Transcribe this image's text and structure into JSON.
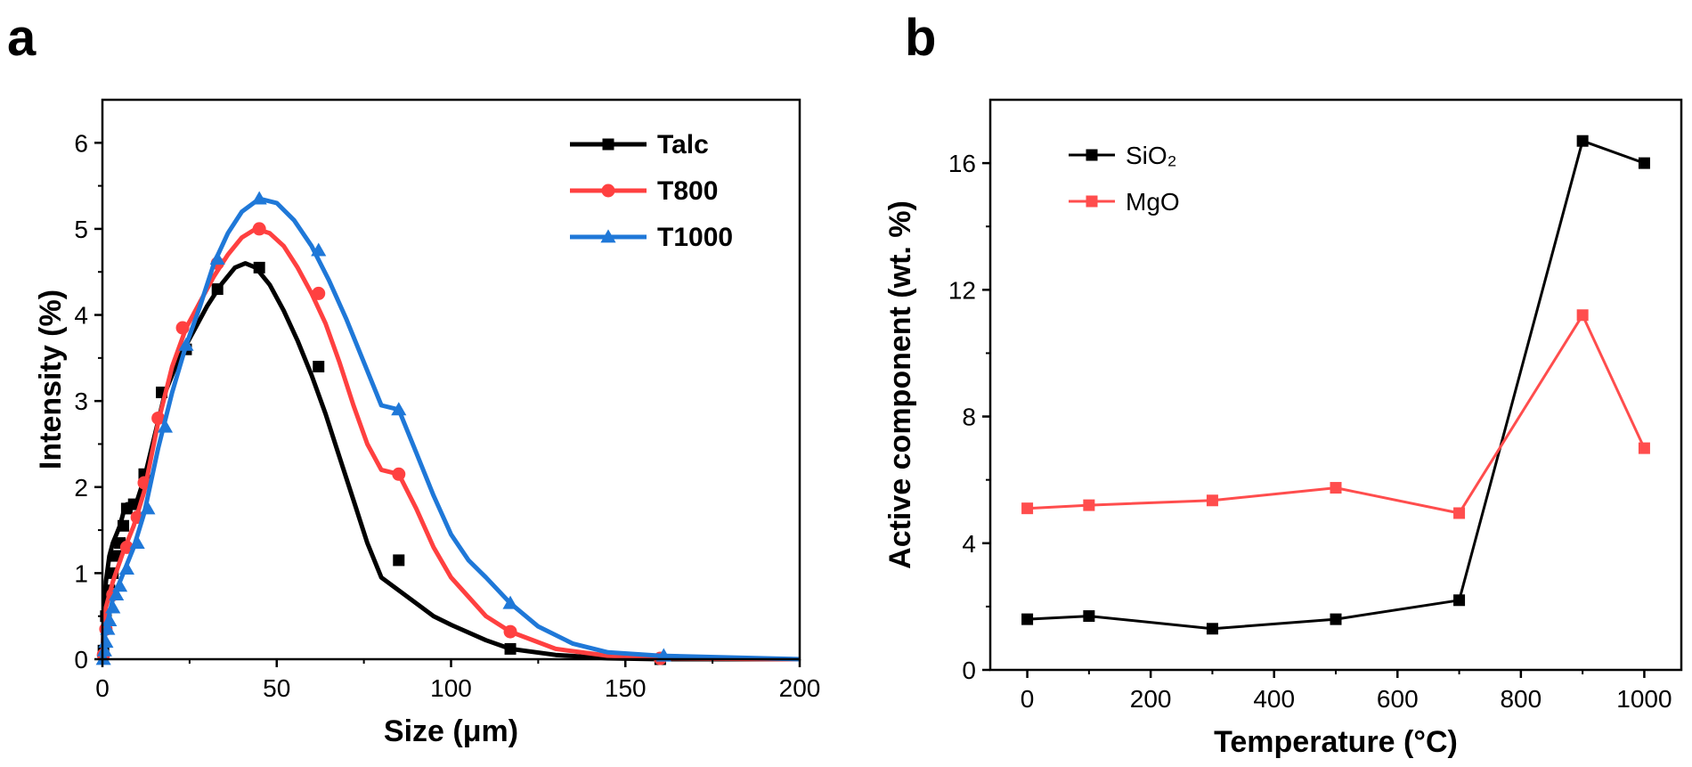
{
  "chart_data": [
    {
      "panel": "a",
      "type": "line",
      "xlabel": "Size (μm)",
      "ylabel": "Intensity (%)",
      "xlim": [
        0,
        200
      ],
      "ylim": [
        0,
        6.5
      ],
      "xticks": [
        0,
        50,
        100,
        150,
        200
      ],
      "yticks": [
        0,
        1,
        2,
        3,
        4,
        5,
        6
      ],
      "legend_position": "top-right",
      "series": [
        {
          "name": "Talc",
          "color": "#000000",
          "marker": "square",
          "curve": [
            [
              0,
              0
            ],
            [
              0.5,
              0.6
            ],
            [
              1,
              0.9
            ],
            [
              2,
              1.2
            ],
            [
              3,
              1.35
            ],
            [
              4,
              1.45
            ],
            [
              5,
              1.55
            ],
            [
              6,
              1.7
            ],
            [
              7,
              1.8
            ],
            [
              8,
              1.8
            ],
            [
              10,
              1.85
            ],
            [
              12,
              2.1
            ],
            [
              15,
              2.6
            ],
            [
              18,
              3.1
            ],
            [
              22,
              3.5
            ],
            [
              26,
              3.8
            ],
            [
              30,
              4.1
            ],
            [
              34,
              4.35
            ],
            [
              38,
              4.55
            ],
            [
              41,
              4.6
            ],
            [
              44,
              4.55
            ],
            [
              48,
              4.35
            ],
            [
              52,
              4.05
            ],
            [
              56,
              3.7
            ],
            [
              60,
              3.3
            ],
            [
              64,
              2.85
            ],
            [
              68,
              2.35
            ],
            [
              72,
              1.85
            ],
            [
              76,
              1.35
            ],
            [
              80,
              0.95
            ],
            [
              85,
              0.8
            ],
            [
              90,
              0.65
            ],
            [
              95,
              0.5
            ],
            [
              100,
              0.4
            ],
            [
              110,
              0.22
            ],
            [
              117,
              0.12
            ],
            [
              130,
              0.05
            ],
            [
              145,
              0.01
            ],
            [
              160,
              0
            ],
            [
              200,
              0
            ]
          ],
          "markers": [
            [
              0.3,
              0.1
            ],
            [
              1,
              0.5
            ],
            [
              2,
              0.8
            ],
            [
              3,
              1.0
            ],
            [
              4,
              1.2
            ],
            [
              5,
              1.35
            ],
            [
              6,
              1.55
            ],
            [
              7,
              1.75
            ],
            [
              9,
              1.8
            ],
            [
              12,
              2.15
            ],
            [
              17,
              3.1
            ],
            [
              24,
              3.6
            ],
            [
              33,
              4.3
            ],
            [
              45,
              4.55
            ],
            [
              62,
              3.4
            ],
            [
              85,
              1.15
            ],
            [
              117,
              0.12
            ],
            [
              160,
              0
            ]
          ]
        },
        {
          "name": "T800",
          "color": "#ff4040",
          "marker": "circle",
          "curve": [
            [
              0,
              0
            ],
            [
              0.5,
              0.4
            ],
            [
              1,
              0.6
            ],
            [
              3,
              0.9
            ],
            [
              6,
              1.25
            ],
            [
              9,
              1.55
            ],
            [
              12,
              1.95
            ],
            [
              16,
              2.75
            ],
            [
              20,
              3.4
            ],
            [
              24,
              3.85
            ],
            [
              28,
              4.15
            ],
            [
              32,
              4.45
            ],
            [
              36,
              4.7
            ],
            [
              40,
              4.9
            ],
            [
              44,
              5.0
            ],
            [
              48,
              4.95
            ],
            [
              52,
              4.8
            ],
            [
              56,
              4.55
            ],
            [
              60,
              4.25
            ],
            [
              64,
              3.9
            ],
            [
              68,
              3.45
            ],
            [
              72,
              2.95
            ],
            [
              76,
              2.5
            ],
            [
              80,
              2.2
            ],
            [
              85,
              2.15
            ],
            [
              90,
              1.75
            ],
            [
              95,
              1.3
            ],
            [
              100,
              0.95
            ],
            [
              110,
              0.5
            ],
            [
              117,
              0.32
            ],
            [
              130,
              0.12
            ],
            [
              145,
              0.04
            ],
            [
              160,
              0.01
            ],
            [
              200,
              0
            ]
          ],
          "markers": [
            [
              0.3,
              0.05
            ],
            [
              1,
              0.35
            ],
            [
              3,
              0.75
            ],
            [
              7,
              1.3
            ],
            [
              10,
              1.65
            ],
            [
              12,
              2.05
            ],
            [
              16,
              2.8
            ],
            [
              23,
              3.85
            ],
            [
              33,
              4.6
            ],
            [
              45,
              5.0
            ],
            [
              62,
              4.25
            ],
            [
              85,
              2.15
            ],
            [
              117,
              0.32
            ],
            [
              160,
              0.01
            ]
          ]
        },
        {
          "name": "T1000",
          "color": "#1f78d8",
          "marker": "triangle",
          "curve": [
            [
              0,
              0
            ],
            [
              0.5,
              0.2
            ],
            [
              1,
              0.35
            ],
            [
              3,
              0.7
            ],
            [
              6,
              1.0
            ],
            [
              9,
              1.3
            ],
            [
              12,
              1.7
            ],
            [
              16,
              2.45
            ],
            [
              20,
              3.1
            ],
            [
              24,
              3.65
            ],
            [
              28,
              4.1
            ],
            [
              32,
              4.6
            ],
            [
              36,
              4.95
            ],
            [
              40,
              5.2
            ],
            [
              45,
              5.35
            ],
            [
              50,
              5.3
            ],
            [
              55,
              5.1
            ],
            [
              60,
              4.8
            ],
            [
              65,
              4.4
            ],
            [
              70,
              3.95
            ],
            [
              75,
              3.45
            ],
            [
              80,
              2.95
            ],
            [
              85,
              2.9
            ],
            [
              90,
              2.4
            ],
            [
              95,
              1.9
            ],
            [
              100,
              1.45
            ],
            [
              105,
              1.15
            ],
            [
              110,
              0.95
            ],
            [
              117,
              0.65
            ],
            [
              125,
              0.38
            ],
            [
              135,
              0.18
            ],
            [
              145,
              0.08
            ],
            [
              160,
              0.04
            ],
            [
              200,
              0
            ]
          ],
          "markers": [
            [
              0.3,
              0
            ],
            [
              0.6,
              0.1
            ],
            [
              1,
              0.2
            ],
            [
              1.5,
              0.35
            ],
            [
              2,
              0.45
            ],
            [
              3,
              0.6
            ],
            [
              4,
              0.75
            ],
            [
              5,
              0.85
            ],
            [
              7,
              1.05
            ],
            [
              10,
              1.35
            ],
            [
              13,
              1.75
            ],
            [
              18,
              2.7
            ],
            [
              24,
              3.65
            ],
            [
              33,
              4.65
            ],
            [
              45,
              5.35
            ],
            [
              62,
              4.75
            ],
            [
              85,
              2.9
            ],
            [
              117,
              0.65
            ],
            [
              161,
              0.04
            ]
          ]
        }
      ]
    },
    {
      "panel": "b",
      "type": "line",
      "xlabel": "Temperature (°C)",
      "ylabel": "Active component (wt. %)",
      "xlim": [
        -60,
        1060
      ],
      "ylim": [
        0,
        18
      ],
      "xticks": [
        0,
        200,
        400,
        600,
        800,
        1000
      ],
      "yticks": [
        0,
        4,
        8,
        12,
        16
      ],
      "legend_position": "top-left",
      "series": [
        {
          "name": "SiO₂",
          "color": "#000000",
          "marker": "square",
          "x": [
            0,
            100,
            300,
            500,
            700,
            900,
            1000
          ],
          "y": [
            1.6,
            1.7,
            1.3,
            1.6,
            2.2,
            16.7,
            16.0
          ]
        },
        {
          "name": "MgO",
          "color": "#ff4d4d",
          "marker": "square",
          "x": [
            0,
            100,
            300,
            500,
            700,
            900,
            1000
          ],
          "y": [
            5.1,
            5.2,
            5.35,
            5.75,
            4.95,
            11.2,
            7.0
          ]
        }
      ]
    }
  ],
  "panel_labels": [
    "a",
    "b"
  ]
}
